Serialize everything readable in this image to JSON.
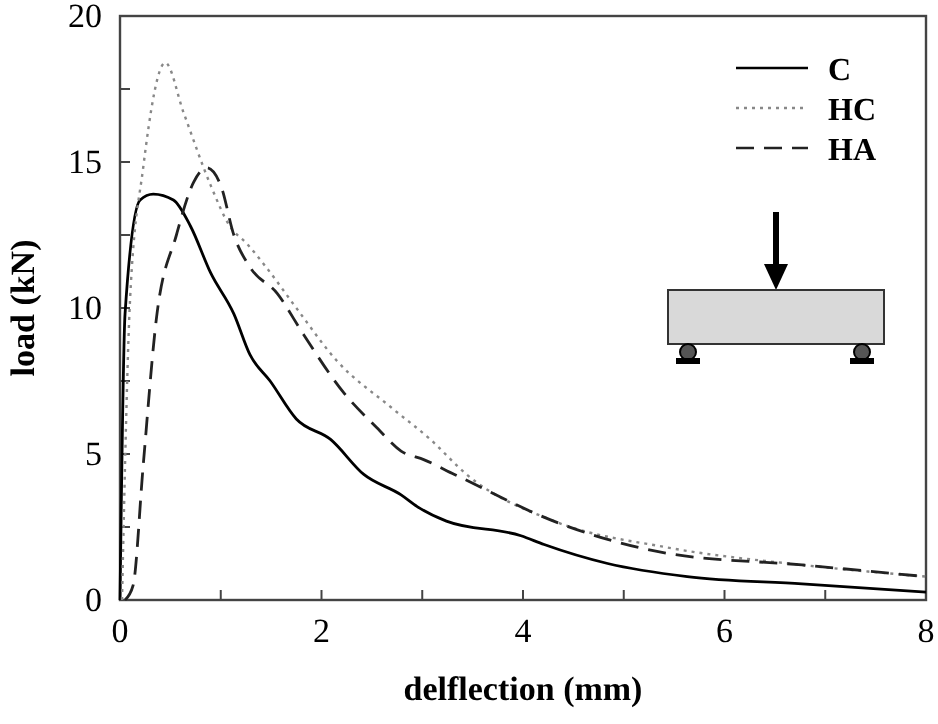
{
  "chart_data": {
    "type": "line",
    "xlabel": "delflection (mm)",
    "ylabel": "load (kN)",
    "xlim": [
      0,
      8
    ],
    "ylim": [
      0,
      20
    ],
    "xticks": [
      0,
      {
        "value": 1,
        "label": null
      },
      2,
      {
        "value": 3,
        "label": null
      },
      4,
      {
        "value": 5,
        "label": null
      },
      6,
      {
        "value": 7,
        "label": null
      },
      8
    ],
    "yticks": [
      0,
      {
        "value": 2.5,
        "label": null
      },
      5,
      {
        "value": 7.5,
        "label": null
      },
      10,
      {
        "value": 12.5,
        "label": null
      },
      15,
      {
        "value": 17.5,
        "label": null
      },
      20
    ],
    "legend": "top right",
    "grid": false,
    "marker": "none",
    "series": [
      {
        "name": "C",
        "color": "#000000",
        "line_style": "solid",
        "x": [
          0,
          0.05,
          0.2,
          0.33,
          0.53,
          0.7,
          0.9,
          1.13,
          1.29,
          1.49,
          1.75,
          2.09,
          2.42,
          2.79,
          2.95,
          3.24,
          3.98,
          4.21,
          4.84,
          5.63,
          6.77,
          8
        ],
        "values": [
          0,
          9.8,
          13.7,
          13.9,
          13.7,
          12.8,
          11.2,
          9.8,
          8.4,
          7.5,
          6.2,
          5.5,
          4.3,
          3.6,
          3.2,
          2.7,
          2.2,
          1.9,
          1.25,
          0.8,
          0.55,
          0.27
        ]
      },
      {
        "name": "HC",
        "color": "#888888",
        "line_style": "dotted",
        "x": [
          0.02,
          0.1,
          0.23,
          0.45,
          0.63,
          0.9,
          1.09,
          1.26,
          1.45,
          1.75,
          2.15,
          2.69,
          3.08,
          3.44,
          4.31,
          5.43,
          6.77,
          8
        ],
        "values": [
          0,
          10.3,
          14.8,
          18.4,
          16.7,
          14.2,
          12.8,
          12.2,
          11.4,
          10.0,
          8.2,
          6.6,
          5.5,
          4.3,
          2.7,
          1.8,
          1.2,
          0.8
        ]
      },
      {
        "name": "HA",
        "color": "#222222",
        "line_style": "dashed",
        "x": [
          0.05,
          0.13,
          0.23,
          0.36,
          0.56,
          0.73,
          0.86,
          1.0,
          1.13,
          1.29,
          1.56,
          1.82,
          2.22,
          2.55,
          2.79,
          3.02,
          3.32,
          4.38,
          5.43,
          6.77,
          8
        ],
        "values": [
          0,
          0.5,
          4.6,
          9.6,
          12.5,
          14.3,
          14.8,
          14.2,
          12.5,
          11.4,
          10.5,
          9.1,
          7.1,
          5.9,
          5.1,
          4.8,
          4.3,
          2.6,
          1.6,
          1.2,
          0.8
        ]
      }
    ]
  }
}
